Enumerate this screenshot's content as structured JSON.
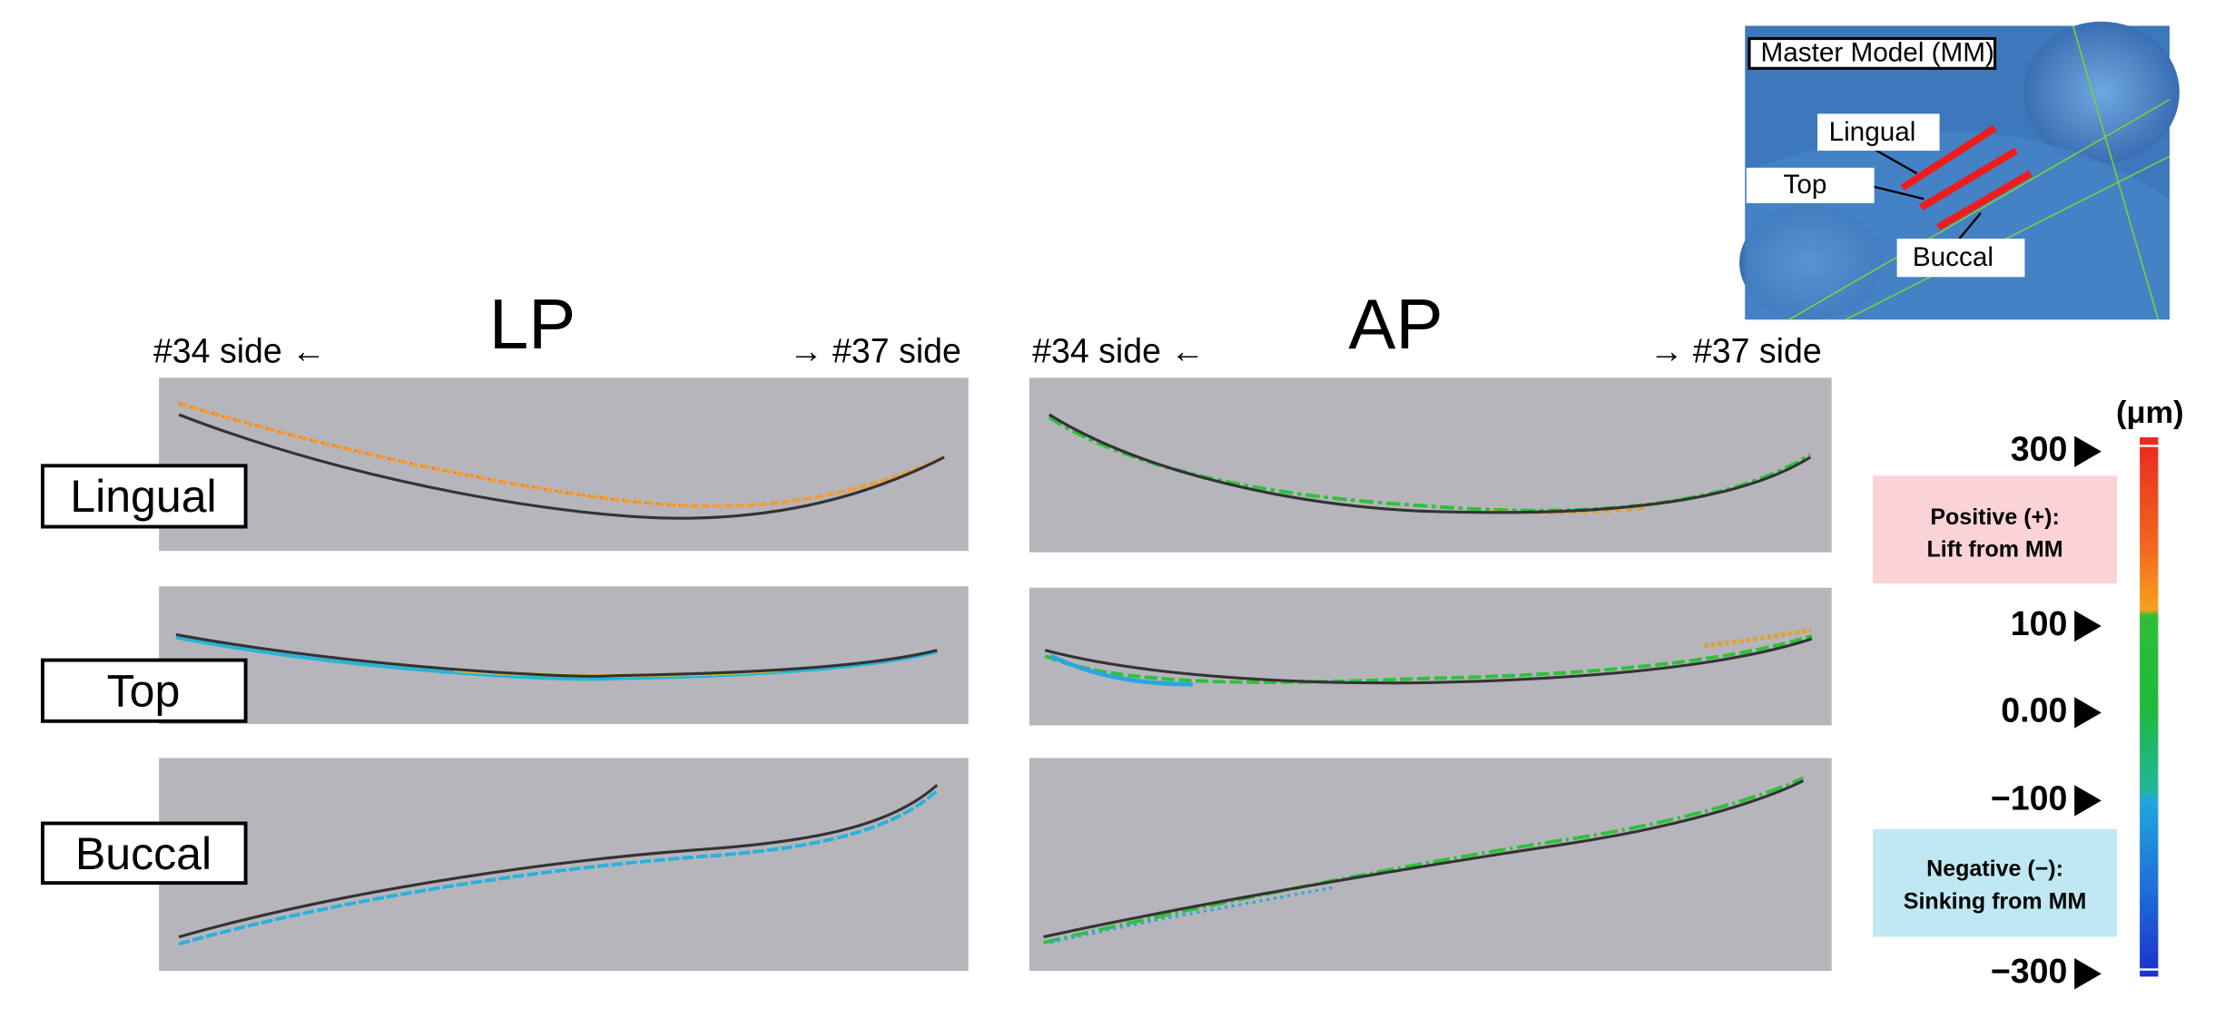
{
  "panels": {
    "left": {
      "title": "LP",
      "left_label": "#34 side ←",
      "right_label": "→ #37 side"
    },
    "right": {
      "title": "AP",
      "left_label": "#34 side ←",
      "right_label": "→ #37 side"
    }
  },
  "rows": [
    "Lingual",
    "Top",
    "Buccal"
  ],
  "inset": {
    "title": "Master Model (MM)",
    "labels": [
      "Lingual",
      "Top",
      "Buccal"
    ]
  },
  "legend": {
    "unit": "(μm)",
    "ticks": [
      "300",
      "100",
      "0.00",
      "−100",
      "−300"
    ],
    "positive": {
      "line1": "Positive (+):",
      "line2": "Lift from MM"
    },
    "negative": {
      "line1": "Negative (−):",
      "line2": "Sinking from MM"
    }
  }
}
